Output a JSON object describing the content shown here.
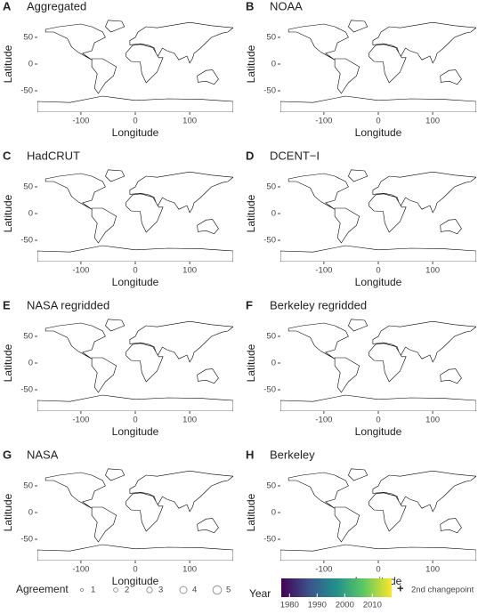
{
  "panels": [
    {
      "letter": "A",
      "title": "Aggregated"
    },
    {
      "letter": "B",
      "title": "NOAA"
    },
    {
      "letter": "C",
      "title": "HadCRUT"
    },
    {
      "letter": "D",
      "title": "DCENT−I"
    },
    {
      "letter": "E",
      "title": "NASA regridded"
    },
    {
      "letter": "F",
      "title": "Berkeley regridded"
    },
    {
      "letter": "G",
      "title": "NASA"
    },
    {
      "letter": "H",
      "title": "Berkeley"
    }
  ],
  "axes": {
    "x_label": "Longitude",
    "y_label": "Latitude",
    "xlim": [
      -180,
      180
    ],
    "ylim": [
      -90,
      90
    ],
    "xticks": [
      -100,
      0,
      100
    ],
    "yticks": [
      50,
      0,
      -50
    ]
  },
  "legend": {
    "agreement": {
      "title": "Agreement",
      "levels": [
        1,
        2,
        3,
        4,
        5
      ]
    },
    "year": {
      "title": "Year",
      "lim": [
        1977,
        2017
      ],
      "ticks": [
        1980,
        1990,
        2000,
        2010
      ]
    },
    "changepoint": {
      "symbol": "+",
      "label": "2nd changepoint"
    }
  }
}
